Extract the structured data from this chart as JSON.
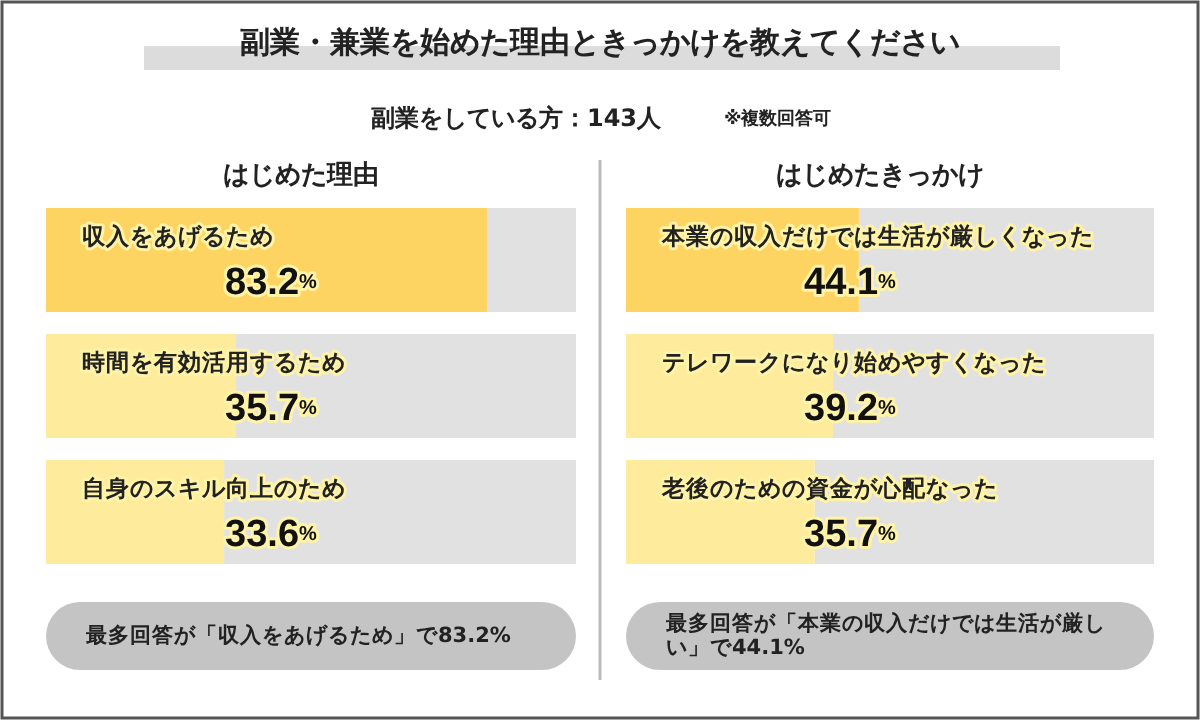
{
  "chart_data": [
    {
      "type": "other",
      "title": "副業・兼業を始めた理由ときっかけを教えてください",
      "annotations": [
        "副業をしている方：143人",
        "※複数回答可"
      ]
    },
    {
      "type": "bar",
      "orientation": "horizontal",
      "title": "はじめた理由",
      "categories": [
        "収入をあげるため",
        "時間を有効活用するため",
        "自身のスキル向上のため"
      ],
      "values": [
        83.2,
        35.7,
        33.6
      ],
      "colors": [
        "#fdd462",
        "#feeb9c",
        "#feeb9c"
      ],
      "value_labels": [
        "83.2%",
        "35.7%",
        "33.6%"
      ],
      "xlim": [
        0,
        100
      ],
      "annotations": [
        "最多回答が「収入をあげるため」で83.2%"
      ]
    },
    {
      "type": "bar",
      "orientation": "horizontal",
      "title": "はじめたきっかけ",
      "categories": [
        "本業の収入だけでは生活が厳しくなった",
        "テレワークになり始めやすくなった",
        "老後のための資金が心配なった"
      ],
      "values": [
        44.1,
        39.2,
        35.7
      ],
      "colors": [
        "#fdd462",
        "#feeb9c",
        "#feeb9c"
      ],
      "value_labels": [
        "44.1%",
        "39.2%",
        "35.7%"
      ],
      "xlim": [
        0,
        100
      ],
      "annotations": [
        "最多回答が「本業の収入だけでは生活が厳しい」で44.1%"
      ]
    }
  ]
}
